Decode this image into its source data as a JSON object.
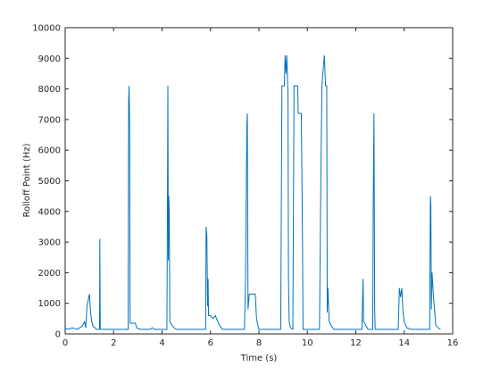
{
  "chart_data": {
    "type": "line",
    "xlabel": "Time (s)",
    "ylabel": "Rolloff Point (Hz)",
    "xlim": [
      0,
      16
    ],
    "xticks": [
      0,
      2,
      4,
      6,
      8,
      10,
      12,
      14,
      16
    ],
    "ylim": [
      0,
      10000
    ],
    "yticks": [
      0,
      1000,
      2000,
      3000,
      4000,
      5000,
      6000,
      7000,
      8000,
      9000,
      10000
    ],
    "grid": false,
    "series": [
      {
        "color": "#0072bd",
        "x": [
          0,
          0.1,
          0.3,
          0.5,
          0.7,
          0.8,
          0.85,
          0.9,
          0.95,
          1.0,
          1.05,
          1.1,
          1.15,
          1.3,
          1.42,
          1.43,
          1.45,
          2.6,
          2.62,
          2.64,
          2.66,
          2.68,
          2.9,
          2.95,
          3.1,
          3.5,
          3.6,
          3.7,
          4.2,
          4.22,
          4.24,
          4.26,
          4.28,
          4.3,
          4.32,
          4.4,
          4.5,
          4.6,
          5.8,
          5.82,
          5.85,
          5.88,
          5.9,
          5.92,
          6.0,
          6.1,
          6.2,
          6.3,
          6.4,
          6.5,
          7.4,
          7.45,
          7.5,
          7.52,
          7.55,
          7.6,
          7.85,
          7.9,
          7.95,
          8.0,
          8.9,
          8.95,
          9.05,
          9.08,
          9.12,
          9.15,
          9.2,
          9.22,
          9.25,
          9.3,
          9.4,
          9.45,
          9.6,
          9.62,
          9.75,
          9.8,
          9.82,
          10.5,
          10.55,
          10.6,
          10.65,
          10.7,
          10.75,
          10.8,
          10.82,
          10.85,
          10.9,
          11.0,
          11.1,
          12.25,
          12.28,
          12.3,
          12.32,
          12.4,
          12.5,
          12.7,
          12.72,
          12.75,
          12.78,
          12.8,
          13.75,
          13.8,
          13.85,
          13.9,
          13.95,
          14.0,
          14.1,
          14.3,
          15.05,
          15.08,
          15.1,
          15.12,
          15.15,
          15.2,
          15.3,
          15.4,
          15.5
        ],
        "values": [
          200,
          150,
          200,
          150,
          250,
          400,
          200,
          900,
          1100,
          1300,
          700,
          400,
          250,
          150,
          150,
          3100,
          150,
          150,
          7600,
          8100,
          6800,
          350,
          350,
          200,
          150,
          150,
          200,
          150,
          150,
          3700,
          8100,
          2400,
          4500,
          3800,
          400,
          300,
          200,
          150,
          150,
          3500,
          3200,
          900,
          1800,
          600,
          600,
          500,
          600,
          400,
          250,
          150,
          150,
          1800,
          6800,
          7200,
          800,
          1300,
          1300,
          500,
          300,
          150,
          150,
          8100,
          8100,
          9100,
          8500,
          9100,
          7800,
          1800,
          400,
          200,
          150,
          8100,
          8100,
          7200,
          7200,
          3000,
          150,
          150,
          4500,
          8100,
          8600,
          9100,
          8100,
          8100,
          700,
          1500,
          400,
          250,
          150,
          150,
          1100,
          1800,
          400,
          300,
          150,
          150,
          4300,
          7200,
          800,
          150,
          150,
          1500,
          1200,
          1500,
          700,
          400,
          200,
          150,
          150,
          4500,
          4200,
          800,
          2000,
          1300,
          300,
          200,
          150
        ]
      }
    ]
  }
}
